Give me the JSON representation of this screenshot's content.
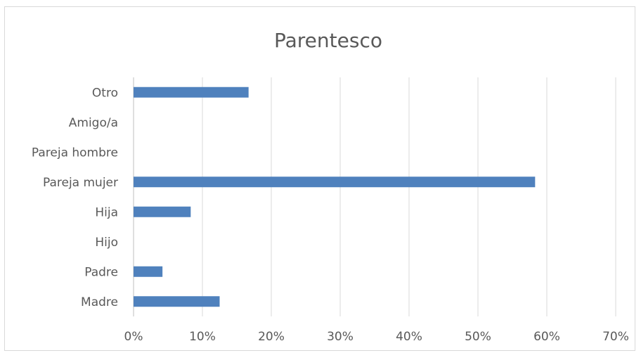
{
  "chart_data": {
    "type": "bar",
    "orientation": "horizontal",
    "title": "Parentesco",
    "categories": [
      "Madre",
      "Padre",
      "Hijo",
      "Hija",
      "Pareja mujer",
      "Pareja hombre",
      "Amigo/a",
      "Otro"
    ],
    "values": [
      0.125,
      0.042,
      0,
      0.083,
      0.583,
      0,
      0,
      0.167
    ],
    "xlim": [
      0,
      0.7
    ],
    "x_ticks": [
      0,
      0.1,
      0.2,
      0.3,
      0.4,
      0.5,
      0.6,
      0.7
    ],
    "x_tick_labels": [
      "0%",
      "10%",
      "20%",
      "30%",
      "40%",
      "50%",
      "60%",
      "70%"
    ],
    "grid": "vertical",
    "legend": "none",
    "bar_color": "#4f81bd"
  }
}
